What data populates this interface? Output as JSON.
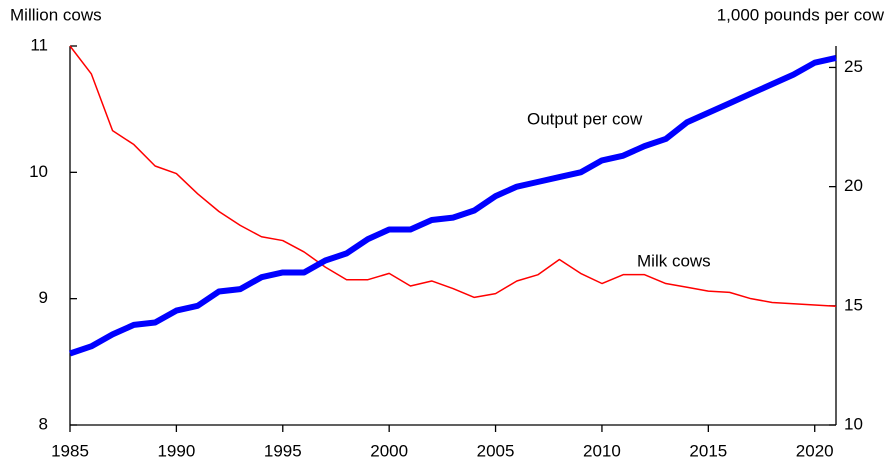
{
  "chart_data": {
    "type": "line",
    "y_label": "Million cows",
    "y2_label": "1,000 pounds per cow",
    "x": [
      1985,
      1986,
      1987,
      1988,
      1989,
      1990,
      1991,
      1992,
      1993,
      1994,
      1995,
      1996,
      1997,
      1998,
      1999,
      2000,
      2001,
      2002,
      2003,
      2004,
      2005,
      2006,
      2007,
      2008,
      2009,
      2010,
      2011,
      2012,
      2013,
      2014,
      2015,
      2016,
      2017,
      2018,
      2019,
      2020,
      2021
    ],
    "xlim": [
      1985,
      2021
    ],
    "xticks": [
      1985,
      1990,
      1995,
      2000,
      2005,
      2010,
      2015,
      2020
    ],
    "ylim": [
      8,
      11
    ],
    "yticks": [
      8,
      9,
      10,
      11
    ],
    "y2lim": [
      10,
      25.9
    ],
    "y2ticks": [
      10,
      15,
      20,
      25
    ],
    "series": [
      {
        "name": "Milk cows",
        "color": "#ff0000",
        "axis": "y",
        "values": [
          11.0,
          10.78,
          10.33,
          10.22,
          10.05,
          9.99,
          9.83,
          9.69,
          9.58,
          9.49,
          9.46,
          9.37,
          9.25,
          9.15,
          9.15,
          9.2,
          9.1,
          9.14,
          9.08,
          9.01,
          9.04,
          9.14,
          9.19,
          9.31,
          9.2,
          9.12,
          9.19,
          9.19,
          9.12,
          9.09,
          9.06,
          9.05,
          9.0,
          8.97,
          8.96,
          8.95,
          8.94
        ]
      },
      {
        "name": "Output per cow",
        "color": "#0000ff",
        "axis": "y2",
        "values": [
          13.0,
          13.3,
          13.8,
          14.2,
          14.3,
          14.8,
          15.0,
          15.6,
          15.7,
          16.2,
          16.4,
          16.4,
          16.9,
          17.2,
          17.8,
          18.2,
          18.2,
          18.6,
          18.7,
          19.0,
          19.6,
          20.0,
          20.2,
          20.4,
          20.6,
          21.1,
          21.3,
          21.7,
          22.0,
          22.7,
          23.1,
          23.5,
          23.9,
          24.3,
          24.7,
          25.2,
          25.4
        ]
      }
    ]
  }
}
